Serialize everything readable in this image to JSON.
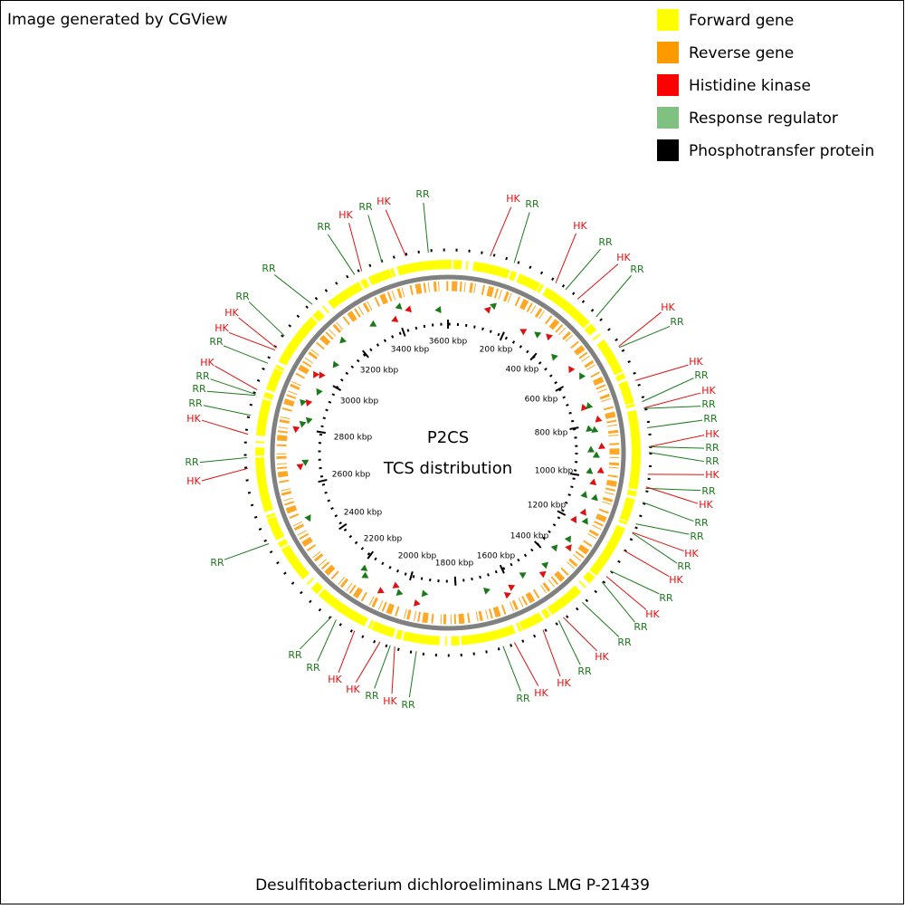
{
  "header": {
    "title": "Image generated by CGView"
  },
  "legend": {
    "items": [
      {
        "label": "Forward gene",
        "color": "#ffff00"
      },
      {
        "label": "Reverse gene",
        "color": "#ff9900"
      },
      {
        "label": "Histidine kinase",
        "color": "#ff0000"
      },
      {
        "label": "Response regulator",
        "color": "#80c080"
      },
      {
        "label": "Phosphotransfer protein",
        "color": "#000000"
      }
    ]
  },
  "center": {
    "title": "P2CS",
    "subtitle": "TCS distribution"
  },
  "ruler": {
    "labels": [
      "200 kbp",
      "400 kbp",
      "600 kbp",
      "800 kbp",
      "1000 kbp",
      "1200 kbp",
      "1400 kbp",
      "1600 kbp",
      "1800 kbp",
      "2000 kbp",
      "2200 kbp",
      "2400 kbp",
      "2600 kbp",
      "2800 kbp",
      "3000 kbp",
      "3200 kbp",
      "3400 kbp",
      "3600 kbp"
    ]
  },
  "callouts": [
    {
      "label": "RR",
      "color": "#1a7a1a"
    },
    {
      "label": "HK",
      "color": "#e01010"
    },
    {
      "label": "RR",
      "color": "#1a7a1a"
    },
    {
      "label": "HK",
      "color": "#e01010"
    },
    {
      "label": "RR",
      "color": "#1a7a1a"
    },
    {
      "label": "RR",
      "color": "#1a7a1a"
    },
    {
      "label": "RR",
      "color": "#1a7a1a"
    },
    {
      "label": "HK",
      "color": "#e01010"
    },
    {
      "label": "HK",
      "color": "#e01010"
    },
    {
      "label": "RR",
      "color": "#1a7a1a"
    },
    {
      "label": "HK",
      "color": "#e01010"
    },
    {
      "label": "RR",
      "color": "#1a7a1a"
    },
    {
      "label": "RR",
      "color": "#1a7a1a"
    },
    {
      "label": "RR",
      "color": "#1a7a1a"
    },
    {
      "label": "HK",
      "color": "#e01010"
    },
    {
      "label": "RR",
      "color": "#1a7a1a"
    },
    {
      "label": "HK",
      "color": "#e01010"
    },
    {
      "label": "RR",
      "color": "#1a7a1a"
    },
    {
      "label": "RR",
      "color": "#1a7a1a"
    },
    {
      "label": "RR",
      "color": "#1a7a1a"
    },
    {
      "label": "HK",
      "color": "#e01010"
    },
    {
      "label": "HK",
      "color": "#e01010"
    },
    {
      "label": "RR",
      "color": "#1a7a1a"
    },
    {
      "label": "HK",
      "color": "#e01010"
    },
    {
      "label": "RR",
      "color": "#1a7a1a"
    },
    {
      "label": "HK",
      "color": "#e01010"
    },
    {
      "label": "RR",
      "color": "#1a7a1a"
    },
    {
      "label": "HK",
      "color": "#e01010"
    },
    {
      "label": "RR",
      "color": "#1a7a1a"
    },
    {
      "label": "HK",
      "color": "#e01010"
    },
    {
      "label": "RR",
      "color": "#1a7a1a"
    },
    {
      "label": "HK",
      "color": "#e01010"
    },
    {
      "label": "RR",
      "color": "#1a7a1a"
    },
    {
      "label": "HK",
      "color": "#e01010"
    },
    {
      "label": "RR",
      "color": "#1a7a1a"
    },
    {
      "label": "HK",
      "color": "#e01010"
    },
    {
      "label": "RR",
      "color": "#1a7a1a"
    },
    {
      "label": "RR",
      "color": "#1a7a1a"
    },
    {
      "label": "HK",
      "color": "#e01010"
    },
    {
      "label": "RR",
      "color": "#1a7a1a"
    },
    {
      "label": "RR",
      "color": "#1a7a1a"
    },
    {
      "label": "HK",
      "color": "#e01010"
    },
    {
      "label": "RR",
      "color": "#1a7a1a"
    },
    {
      "label": "HK",
      "color": "#e01010"
    },
    {
      "label": "RR",
      "color": "#1a7a1a"
    },
    {
      "label": "RR",
      "color": "#1a7a1a"
    },
    {
      "label": "HK",
      "color": "#e01010"
    },
    {
      "label": "RR",
      "color": "#1a7a1a"
    },
    {
      "label": "HK",
      "color": "#e01010"
    },
    {
      "label": "RR",
      "color": "#1a7a1a"
    },
    {
      "label": "HK",
      "color": "#e01010"
    },
    {
      "label": "RR",
      "color": "#1a7a1a"
    },
    {
      "label": "RR",
      "color": "#1a7a1a"
    },
    {
      "label": "HK",
      "color": "#e01010"
    },
    {
      "label": "RR",
      "color": "#1a7a1a"
    },
    {
      "label": "HK",
      "color": "#e01010"
    },
    {
      "label": "HK",
      "color": "#e01010"
    },
    {
      "label": "RR",
      "color": "#1a7a1a"
    }
  ],
  "caption": "Desulfitobacterium dichloroeliminans LMG P-21439"
}
